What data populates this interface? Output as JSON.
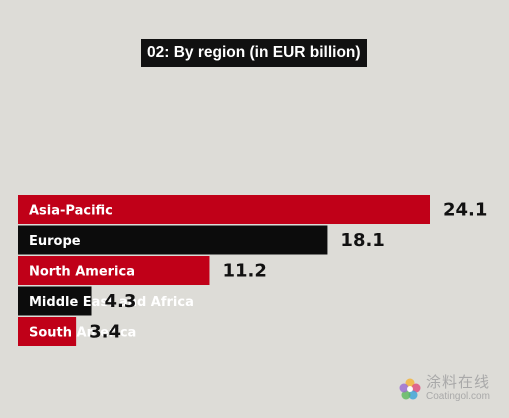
{
  "chart_data": {
    "type": "bar",
    "orientation": "horizontal",
    "title": "02: By region (in EUR billion)",
    "categories": [
      "Asia-Pacific",
      "Europe",
      "North America",
      "Middle East and Africa",
      "South America"
    ],
    "values": [
      24.1,
      18.1,
      11.2,
      4.3,
      3.4
    ],
    "value_labels": [
      "24.1",
      "18.1",
      "11.2",
      "4.3",
      "3.4"
    ],
    "bar_colors": [
      "#c00018",
      "#0c0c0c",
      "#c00018",
      "#0c0c0c",
      "#c00018"
    ],
    "xlim": [
      0,
      24.1
    ],
    "grid": false,
    "legend": "none"
  },
  "watermark": {
    "cn": "涂料在线",
    "en": "Coatingol.com"
  },
  "colors": {
    "background": "#dddcd7",
    "red": "#c00018",
    "black": "#0c0c0c"
  }
}
